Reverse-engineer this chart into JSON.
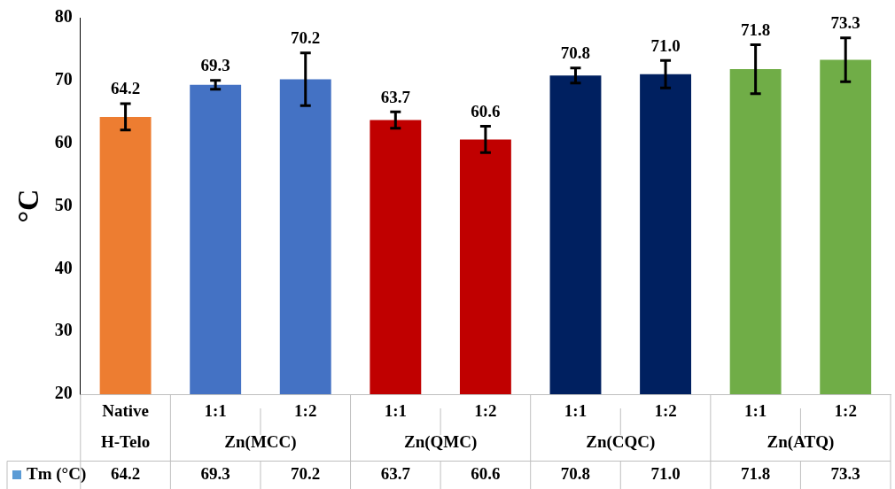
{
  "chart_data": {
    "type": "bar",
    "categories": [
      "Native\nH-Telo",
      "1:1",
      "1:2",
      "1:1",
      "1:2",
      "1:1",
      "1:2",
      "1:1",
      "1:2"
    ],
    "series": [
      {
        "name": "Tm (°C)",
        "color": "#5b9bd5",
        "colors": [
          "#ed7d31",
          "#4472c4",
          "#4472c4",
          "#c00000",
          "#c00000",
          "#002060",
          "#002060",
          "#70ad47",
          "#70ad47"
        ],
        "values": [
          64.2,
          69.3,
          70.2,
          63.7,
          60.6,
          70.8,
          71.0,
          71.8,
          73.3
        ],
        "errors": [
          2.1,
          0.7,
          4.2,
          1.3,
          2.1,
          1.2,
          2.2,
          3.9,
          3.5
        ],
        "value_labels": [
          "64.2",
          "69.3",
          "70.2",
          "63.7",
          "60.6",
          "70.8",
          "71.0",
          "71.8",
          "73.3"
        ]
      }
    ],
    "annotations": [
      "Zn(MCC)",
      "Zn(QMC)",
      "Zn(CQC)",
      "Zn(ATQ)"
    ],
    "ylabel": "°C",
    "ylim": [
      20,
      80
    ],
    "yticks": [
      20,
      30,
      40,
      50,
      60,
      70,
      80
    ],
    "grid": false,
    "legend": "bottom",
    "data_labels": true
  }
}
